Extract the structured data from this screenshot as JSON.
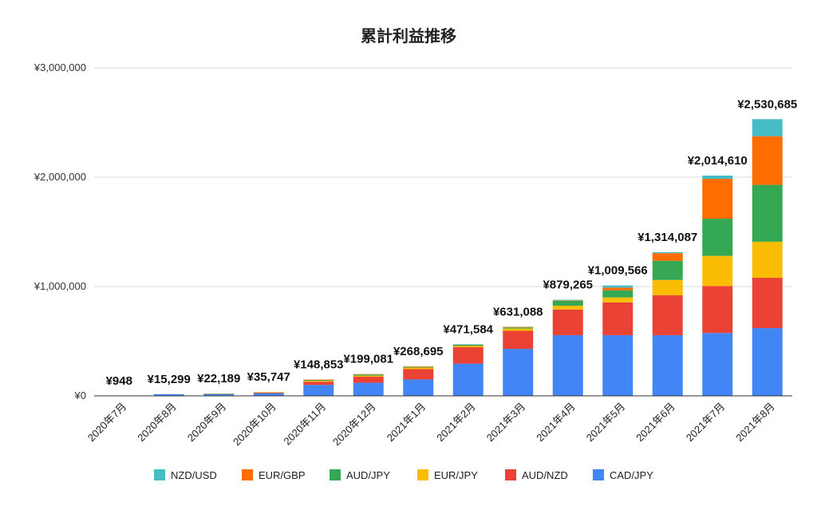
{
  "chart_data": {
    "type": "bar",
    "stacked": true,
    "title": "累計利益推移",
    "xlabel": "",
    "ylabel": "",
    "ylim": [
      0,
      3000000
    ],
    "yticks": [
      "¥0",
      "¥1,000,000",
      "¥2,000,000",
      "¥3,000,000"
    ],
    "ytick_values": [
      0,
      1000000,
      2000000,
      3000000
    ],
    "grid": true,
    "legend_position": "bottom",
    "categories": [
      "2020年7月",
      "2020年8月",
      "2020年9月",
      "2020年10月",
      "2020年11月",
      "2020年12月",
      "2021年1月",
      "2021年2月",
      "2021年3月",
      "2021年4月",
      "2021年5月",
      "2021年6月",
      "2021年7月",
      "2021年8月"
    ],
    "totals": [
      "¥948",
      "¥15,299",
      "¥22,189",
      "¥35,747",
      "¥148,853",
      "¥199,081",
      "¥268,695",
      "¥471,584",
      "¥631,088",
      "¥879,265",
      "¥1,009,566",
      "¥1,314,087",
      "¥2,014,610",
      "¥2,530,685"
    ],
    "series": [
      {
        "name": "CAD/JPY",
        "color": "#4285f4",
        "values": [
          948,
          15299,
          20000,
          25000,
          100000,
          120000,
          150000,
          295000,
          430000,
          555000,
          555000,
          555000,
          575000,
          620000
        ]
      },
      {
        "name": "AUD/NZD",
        "color": "#ea4335",
        "values": [
          0,
          0,
          0,
          5747,
          30000,
          55000,
          95000,
          150000,
          165000,
          235000,
          300000,
          365000,
          430000,
          460000
        ]
      },
      {
        "name": "EUR/JPY",
        "color": "#fbbc04",
        "values": [
          0,
          0,
          2189,
          5000,
          8000,
          10000,
          13695,
          12000,
          21088,
          35000,
          45000,
          140000,
          275000,
          330000
        ]
      },
      {
        "name": "AUD/JPY",
        "color": "#34a853",
        "values": [
          0,
          0,
          0,
          0,
          8000,
          10000,
          8000,
          10000,
          10000,
          45000,
          65000,
          175000,
          340000,
          520000
        ]
      },
      {
        "name": "EUR/GBP",
        "color": "#ff6d01",
        "values": [
          0,
          0,
          0,
          0,
          2853,
          4081,
          2000,
          3000,
          5000,
          4265,
          25000,
          70000,
          365000,
          445000
        ]
      },
      {
        "name": "NZD/USD",
        "color": "#46bdc6",
        "values": [
          0,
          0,
          0,
          0,
          0,
          0,
          0,
          1584,
          0,
          5000,
          19566,
          9087,
          29610,
          155685
        ]
      }
    ],
    "legend_order": [
      "NZD/USD",
      "EUR/GBP",
      "AUD/JPY",
      "EUR/JPY",
      "AUD/NZD",
      "CAD/JPY"
    ]
  }
}
